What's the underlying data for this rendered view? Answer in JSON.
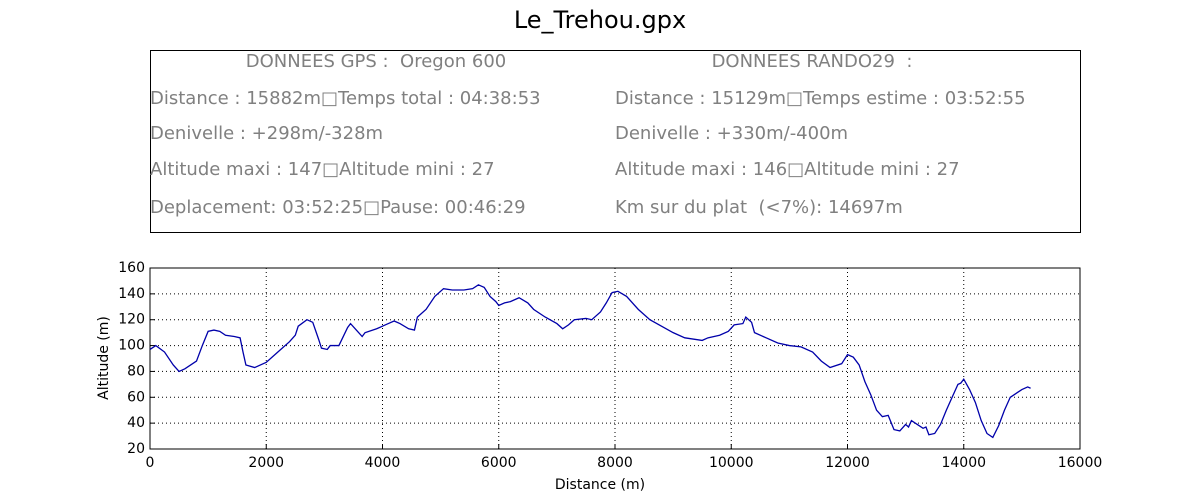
{
  "chart_data": {
    "type": "line",
    "title": "Le_Trehou.gpx",
    "info_left": [
      "DONNEES GPS :  Oregon 600",
      "Distance : 15882m□Temps total : 04:38:53",
      "Denivelle : +298m/-328m",
      "Altitude maxi : 147□Altitude mini : 27",
      "Deplacement: 03:52:25□Pause: 00:46:29"
    ],
    "info_right": [
      "DONNEES RANDO29  :",
      "Distance : 15129m□Temps estime : 03:52:55",
      "Denivelle : +330m/-400m",
      "Altitude maxi : 146□Altitude mini : 27",
      "Km sur du plat  (<7%): 14697m"
    ],
    "x_label": "Distance (m)",
    "y_label": "Altitude (m)",
    "xlim": [
      0,
      16000
    ],
    "xticks": [
      0,
      2000,
      4000,
      6000,
      8000,
      10000,
      12000,
      14000,
      16000
    ],
    "ylim": [
      20,
      160
    ],
    "yticks": [
      20,
      40,
      60,
      80,
      100,
      120,
      140,
      160
    ],
    "grid": true,
    "color": "#0000aa",
    "x": [
      0,
      100,
      250,
      400,
      500,
      600,
      800,
      900,
      1000,
      1100,
      1200,
      1300,
      1450,
      1550,
      1600,
      1650,
      1800,
      2000,
      2200,
      2400,
      2500,
      2550,
      2700,
      2800,
      2900,
      2950,
      3050,
      3100,
      3250,
      3400,
      3450,
      3550,
      3650,
      3700,
      3900,
      4100,
      4200,
      4300,
      4450,
      4550,
      4600,
      4750,
      4900,
      5050,
      5200,
      5400,
      5550,
      5650,
      5750,
      5850,
      5950,
      6000,
      6100,
      6200,
      6350,
      6500,
      6600,
      6800,
      7000,
      7100,
      7200,
      7300,
      7500,
      7600,
      7750,
      7850,
      7950,
      8050,
      8200,
      8400,
      8600,
      8800,
      9000,
      9200,
      9500,
      9600,
      9800,
      9950,
      10050,
      10200,
      10250,
      10350,
      10400,
      10600,
      10800,
      11000,
      11200,
      11400,
      11550,
      11700,
      11900,
      12000,
      12100,
      12200,
      12300,
      12400,
      12500,
      12600,
      12700,
      12800,
      12900,
      13000,
      13050,
      13100,
      13200,
      13300,
      13350,
      13400,
      13500,
      13600,
      13700,
      13800,
      13900,
      13950,
      14000,
      14100,
      14200,
      14300,
      14400,
      14500,
      14600,
      14700,
      14800,
      15000,
      15100,
      15150
    ],
    "values": [
      97,
      100,
      95,
      85,
      80,
      82,
      88,
      100,
      111,
      112,
      111,
      108,
      107,
      106,
      95,
      85,
      83,
      87,
      95,
      103,
      108,
      115,
      120,
      118,
      105,
      98,
      97,
      100,
      100,
      114,
      117,
      112,
      107,
      110,
      113,
      117,
      119,
      117,
      113,
      112,
      122,
      128,
      138,
      144,
      143,
      143,
      144,
      147,
      145,
      138,
      134,
      131,
      133,
      134,
      137,
      133,
      128,
      122,
      117,
      113,
      116,
      120,
      121,
      120,
      126,
      133,
      141,
      142,
      138,
      128,
      120,
      115,
      110,
      106,
      104,
      106,
      108,
      111,
      116,
      117,
      122,
      118,
      110,
      106,
      102,
      100,
      99,
      95,
      88,
      83,
      86,
      93,
      91,
      85,
      72,
      62,
      50,
      45,
      46,
      35,
      34,
      39,
      37,
      42,
      39,
      36,
      37,
      31,
      32,
      39,
      50,
      60,
      70,
      71,
      74,
      66,
      56,
      42,
      32,
      29,
      38,
      50,
      60,
      66,
      68,
      67
    ]
  }
}
